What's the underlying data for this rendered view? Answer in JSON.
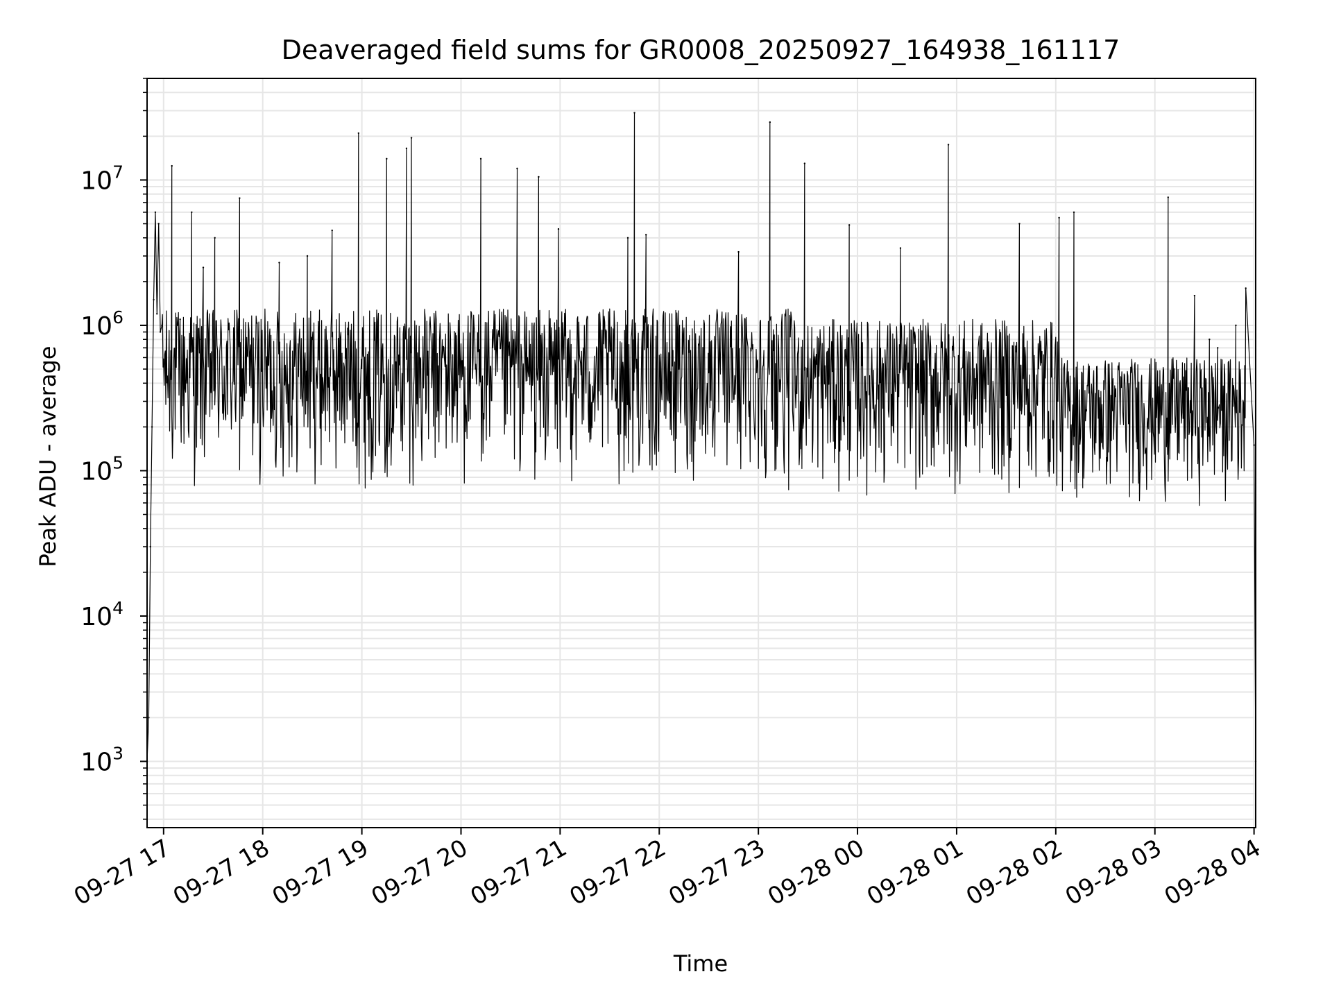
{
  "chart_data": {
    "type": "line",
    "title": "Deaveraged field sums for GR0008_20250927_164938_161117",
    "xlabel": "Time",
    "ylabel": "Peak ADU - average",
    "x_scale": "time",
    "y_scale": "log",
    "xlim": [
      "2025-09-27 16:50",
      "2025-09-28 04:01"
    ],
    "ylim": [
      350,
      50000000
    ],
    "x_ticks": [
      "09-27 17",
      "09-27 18",
      "09-27 19",
      "09-27 20",
      "09-27 21",
      "09-27 22",
      "09-27 23",
      "09-28 00",
      "09-28 01",
      "09-28 02",
      "09-28 03",
      "09-28 04"
    ],
    "y_ticks": [
      {
        "value": 1000,
        "base": "10",
        "exp": "3"
      },
      {
        "value": 10000,
        "base": "10",
        "exp": "4"
      },
      {
        "value": 100000,
        "base": "10",
        "exp": "5"
      },
      {
        "value": 1000000,
        "base": "10",
        "exp": "6"
      },
      {
        "value": 10000000,
        "base": "10",
        "exp": "7"
      }
    ],
    "grid": true,
    "legend": "none",
    "line_color": "#000000",
    "grid_color": "#e6e6e6",
    "series": [
      {
        "x": [
          "2025-09-27 16:50",
          "2025-09-27 16:51",
          "2025-09-27 16:52",
          "2025-09-27 16:53",
          "2025-09-27 16:54",
          "2025-09-27 16:55",
          "2025-09-27 16:56",
          "2025-09-27 16:57",
          "2025-09-27 16:58",
          "2025-09-27 16:59",
          "2025-09-27 17:05",
          "2025-09-27 17:10",
          "2025-09-27 17:17",
          "2025-09-27 17:22",
          "2025-09-27 17:24",
          "2025-09-27 17:31",
          "2025-09-27 17:46",
          "2025-09-27 18:10",
          "2025-09-27 18:27",
          "2025-09-27 18:42",
          "2025-09-27 18:58",
          "2025-09-27 19:15",
          "2025-09-27 19:27",
          "2025-09-27 19:30",
          "2025-09-27 20:12",
          "2025-09-27 20:34",
          "2025-09-27 20:47",
          "2025-09-27 20:59",
          "2025-09-27 21:41",
          "2025-09-27 21:45",
          "2025-09-27 21:52",
          "2025-09-27 22:48",
          "2025-09-27 23:07",
          "2025-09-27 23:28",
          "2025-09-27 23:55",
          "2025-09-28 00:26",
          "2025-09-28 00:55",
          "2025-09-28 01:38",
          "2025-09-28 02:02",
          "2025-09-28 02:11",
          "2025-09-28 03:08",
          "2025-09-28 03:24",
          "2025-09-28 03:33",
          "2025-09-28 03:38",
          "2025-09-28 03:49",
          "2025-09-28 03:55",
          "2025-09-28 04:00",
          "2025-09-28 04:01"
        ],
        "y": [
          1000,
          2000,
          30000,
          200000,
          1500000,
          6000000,
          1200000,
          5000000,
          900000,
          1000000,
          12500000,
          1100000,
          6000000,
          800000,
          2500000,
          4000000,
          7500000,
          2700000,
          3000000,
          4500000,
          21000000,
          14000000,
          16500000,
          19500000,
          14000000,
          12000000,
          10500000,
          4600000,
          4000000,
          29000000,
          4200000,
          3200000,
          25000000,
          13000000,
          4900000,
          3400000,
          17500000,
          5000000,
          5500000,
          6000000,
          7600000,
          1600000,
          800000,
          700000,
          1000000,
          1800000,
          150000,
          1000
        ]
      }
    ]
  }
}
